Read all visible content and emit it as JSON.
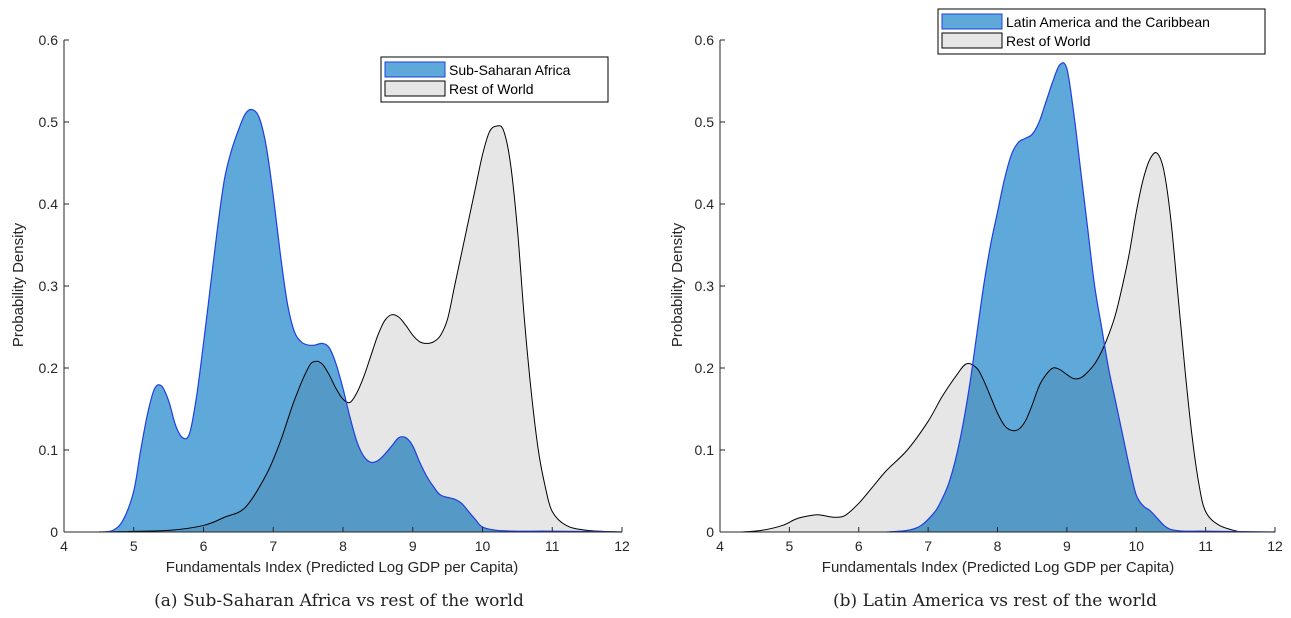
{
  "chart_data": [
    {
      "type": "area",
      "caption": "(a) Sub-Saharan Africa vs rest of the world",
      "xlabel": "Fundamentals Index (Predicted Log GDP per Capita)",
      "ylabel": "Probability Density",
      "xlim": [
        4,
        12
      ],
      "ylim": [
        0,
        0.6
      ],
      "xticks": [
        4,
        5,
        6,
        7,
        8,
        9,
        10,
        11,
        12
      ],
      "yticks": [
        0,
        0.1,
        0.2,
        0.3,
        0.4,
        0.5,
        0.6
      ],
      "grid": false,
      "legend_position": "top-right",
      "colors": {
        "region": "#5ea8da",
        "region_edge": "#1f3fe0",
        "rest": "#e6e6e6",
        "rest_edge": "#000000",
        "overlap": "#5599c6"
      },
      "series": [
        {
          "name": "Sub-Saharan Africa",
          "x": [
            4.5,
            4.7,
            4.85,
            5.0,
            5.1,
            5.2,
            5.3,
            5.4,
            5.5,
            5.6,
            5.7,
            5.8,
            5.9,
            6.0,
            6.1,
            6.2,
            6.3,
            6.4,
            6.5,
            6.6,
            6.7,
            6.8,
            6.9,
            7.0,
            7.1,
            7.2,
            7.3,
            7.4,
            7.5,
            7.6,
            7.7,
            7.8,
            7.9,
            8.0,
            8.1,
            8.2,
            8.3,
            8.4,
            8.5,
            8.6,
            8.7,
            8.8,
            8.9,
            9.0,
            9.1,
            9.2,
            9.3,
            9.4,
            9.6,
            9.7,
            9.8,
            9.9,
            10.0,
            10.2,
            10.5,
            11.0,
            12.0
          ],
          "y": [
            0.0,
            0.002,
            0.015,
            0.05,
            0.1,
            0.145,
            0.175,
            0.178,
            0.16,
            0.13,
            0.115,
            0.12,
            0.165,
            0.23,
            0.3,
            0.37,
            0.43,
            0.465,
            0.49,
            0.51,
            0.515,
            0.505,
            0.47,
            0.41,
            0.34,
            0.28,
            0.245,
            0.232,
            0.228,
            0.228,
            0.23,
            0.225,
            0.205,
            0.175,
            0.14,
            0.11,
            0.092,
            0.085,
            0.087,
            0.095,
            0.105,
            0.115,
            0.115,
            0.105,
            0.085,
            0.068,
            0.055,
            0.045,
            0.04,
            0.035,
            0.025,
            0.015,
            0.006,
            0.002,
            0.001,
            0.001,
            0.0
          ]
        },
        {
          "name": "Rest of World",
          "x": [
            4.5,
            5.5,
            6.0,
            6.3,
            6.6,
            6.9,
            7.1,
            7.3,
            7.5,
            7.6,
            7.7,
            7.8,
            7.9,
            8.0,
            8.1,
            8.2,
            8.3,
            8.4,
            8.5,
            8.6,
            8.7,
            8.8,
            8.9,
            9.0,
            9.1,
            9.2,
            9.3,
            9.4,
            9.5,
            9.6,
            9.7,
            9.8,
            9.9,
            10.0,
            10.1,
            10.2,
            10.3,
            10.4,
            10.5,
            10.6,
            10.7,
            10.8,
            10.9,
            11.0,
            11.2,
            11.5,
            12.0
          ],
          "y": [
            0.0,
            0.002,
            0.008,
            0.018,
            0.03,
            0.07,
            0.11,
            0.16,
            0.2,
            0.208,
            0.205,
            0.192,
            0.175,
            0.162,
            0.158,
            0.17,
            0.19,
            0.215,
            0.24,
            0.258,
            0.265,
            0.262,
            0.252,
            0.24,
            0.232,
            0.23,
            0.232,
            0.24,
            0.26,
            0.3,
            0.34,
            0.38,
            0.42,
            0.46,
            0.488,
            0.495,
            0.49,
            0.45,
            0.37,
            0.26,
            0.17,
            0.1,
            0.055,
            0.025,
            0.008,
            0.002,
            0.0
          ]
        }
      ]
    },
    {
      "type": "area",
      "caption": "(b) Latin America vs rest of the world",
      "xlabel": "Fundamentals Index (Predicted Log GDP per Capita)",
      "ylabel": "Probability Density",
      "xlim": [
        4,
        12
      ],
      "ylim": [
        0,
        0.6
      ],
      "xticks": [
        4,
        5,
        6,
        7,
        8,
        9,
        10,
        11,
        12
      ],
      "yticks": [
        0,
        0.1,
        0.2,
        0.3,
        0.4,
        0.5,
        0.6
      ],
      "grid": false,
      "legend_position": "top-right",
      "colors": {
        "region": "#5ea8da",
        "region_edge": "#1f3fe0",
        "rest": "#e6e6e6",
        "rest_edge": "#000000",
        "overlap": "#5599c6"
      },
      "series": [
        {
          "name": "Latin America and the Caribbean",
          "x": [
            6.4,
            6.7,
            6.9,
            7.1,
            7.2,
            7.3,
            7.4,
            7.5,
            7.6,
            7.7,
            7.8,
            7.9,
            8.0,
            8.1,
            8.2,
            8.3,
            8.4,
            8.5,
            8.6,
            8.7,
            8.8,
            8.9,
            9.0,
            9.1,
            9.2,
            9.3,
            9.4,
            9.5,
            9.6,
            9.7,
            9.8,
            9.9,
            10.0,
            10.1,
            10.2,
            10.3,
            10.4,
            10.5,
            10.7,
            11.0,
            12.0
          ],
          "y": [
            0.0,
            0.002,
            0.008,
            0.025,
            0.04,
            0.06,
            0.09,
            0.13,
            0.18,
            0.24,
            0.3,
            0.35,
            0.39,
            0.43,
            0.46,
            0.475,
            0.48,
            0.485,
            0.5,
            0.525,
            0.55,
            0.57,
            0.565,
            0.51,
            0.44,
            0.37,
            0.3,
            0.25,
            0.2,
            0.16,
            0.12,
            0.08,
            0.045,
            0.032,
            0.026,
            0.017,
            0.008,
            0.003,
            0.001,
            0.001,
            0.0
          ]
        },
        {
          "name": "Rest of World",
          "x": [
            4.3,
            4.6,
            4.9,
            5.1,
            5.3,
            5.4,
            5.5,
            5.65,
            5.8,
            6.0,
            6.2,
            6.4,
            6.7,
            7.0,
            7.2,
            7.4,
            7.55,
            7.7,
            7.8,
            7.9,
            8.0,
            8.1,
            8.2,
            8.3,
            8.4,
            8.5,
            8.6,
            8.7,
            8.8,
            8.9,
            9.0,
            9.1,
            9.2,
            9.3,
            9.4,
            9.5,
            9.6,
            9.7,
            9.8,
            9.9,
            10.0,
            10.1,
            10.2,
            10.3,
            10.4,
            10.5,
            10.6,
            10.7,
            10.8,
            10.9,
            11.0,
            11.2,
            11.5
          ],
          "y": [
            0.0,
            0.002,
            0.008,
            0.016,
            0.02,
            0.021,
            0.02,
            0.018,
            0.02,
            0.035,
            0.055,
            0.075,
            0.1,
            0.135,
            0.165,
            0.19,
            0.205,
            0.2,
            0.185,
            0.165,
            0.145,
            0.13,
            0.124,
            0.125,
            0.135,
            0.155,
            0.178,
            0.192,
            0.2,
            0.198,
            0.192,
            0.187,
            0.188,
            0.195,
            0.205,
            0.22,
            0.24,
            0.265,
            0.3,
            0.34,
            0.39,
            0.43,
            0.455,
            0.462,
            0.44,
            0.38,
            0.29,
            0.2,
            0.12,
            0.06,
            0.025,
            0.008,
            0.0
          ]
        }
      ]
    }
  ]
}
